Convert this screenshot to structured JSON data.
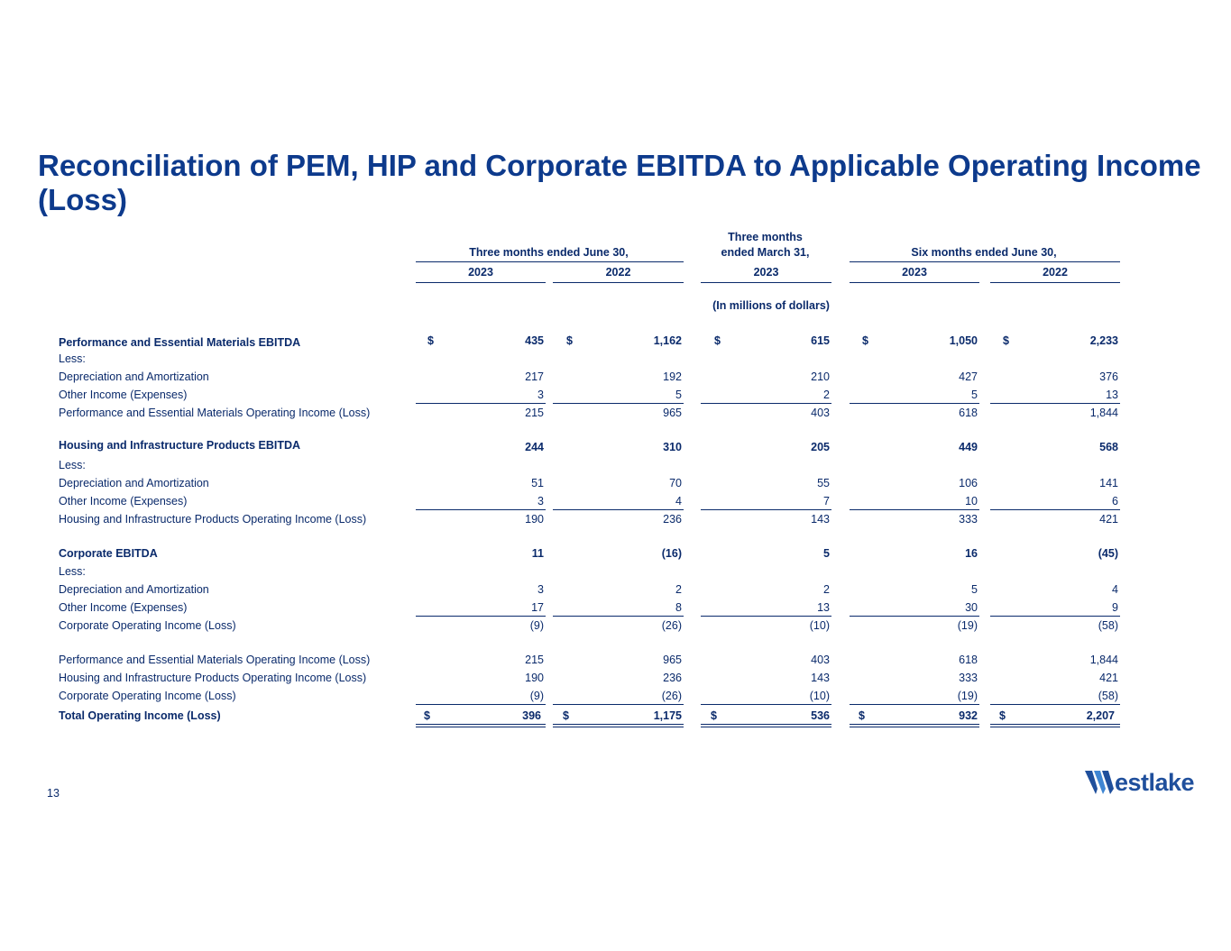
{
  "title": "Reconciliation of PEM, HIP and Corporate EBITDA to Applicable Operating Income (Loss)",
  "headers": {
    "group_1": "Three months ended June 30,",
    "group_2_line1": "Three months",
    "group_2_line2": "ended March 31,",
    "group_3": "Six months ended June 30,",
    "years": [
      "2023",
      "2022",
      "2023",
      "2023",
      "2022"
    ],
    "units": "(In millions of dollars)"
  },
  "dollar_sign": "$",
  "rows": [
    {
      "label": "Performance and Essential Materials EBITDA",
      "values": [
        "435",
        "1,162",
        "615",
        "1,050",
        "2,233"
      ]
    },
    {
      "label": "Less:"
    },
    {
      "label": "Depreciation and Amortization",
      "values": [
        "217",
        "192",
        "210",
        "427",
        "376"
      ]
    },
    {
      "label": "Other Income (Expenses)",
      "values": [
        "3",
        "5",
        "2",
        "5",
        "13"
      ]
    },
    {
      "label": "Performance and Essential Materials Operating Income (Loss)",
      "values": [
        "215",
        "965",
        "403",
        "618",
        "1,844"
      ]
    },
    {
      "label": "Housing and Infrastructure Products EBITDA",
      "values": [
        "244",
        "310",
        "205",
        "449",
        "568"
      ]
    },
    {
      "label": "Less:"
    },
    {
      "label": "Depreciation and Amortization",
      "values": [
        "51",
        "70",
        "55",
        "106",
        "141"
      ]
    },
    {
      "label": "Other Income (Expenses)",
      "values": [
        "3",
        "4",
        "7",
        "10",
        "6"
      ]
    },
    {
      "label": "Housing and Infrastructure Products Operating Income (Loss)",
      "values": [
        "190",
        "236",
        "143",
        "333",
        "421"
      ]
    },
    {
      "label": "Corporate EBITDA",
      "values": [
        "11",
        "(16)",
        "5",
        "16",
        "(45)"
      ]
    },
    {
      "label": "Less:"
    },
    {
      "label": "Depreciation and Amortization",
      "values": [
        "3",
        "2",
        "2",
        "5",
        "4"
      ]
    },
    {
      "label": "Other Income (Expenses)",
      "values": [
        "17",
        "8",
        "13",
        "30",
        "9"
      ]
    },
    {
      "label": "Corporate Operating Income (Loss)",
      "values": [
        "(9)",
        "(26)",
        "(10)",
        "(19)",
        "(58)"
      ]
    },
    {
      "label": "Performance and Essential Materials Operating Income (Loss)",
      "values": [
        "215",
        "965",
        "403",
        "618",
        "1,844"
      ]
    },
    {
      "label": "Housing and Infrastructure Products Operating Income (Loss)",
      "values": [
        "190",
        "236",
        "143",
        "333",
        "421"
      ]
    },
    {
      "label": "Corporate Operating Income (Loss)",
      "values": [
        "(9)",
        "(26)",
        "(10)",
        "(19)",
        "(58)"
      ]
    },
    {
      "label": "Total Operating Income (Loss)",
      "values": [
        "396",
        "1,175",
        "536",
        "932",
        "2,207"
      ]
    }
  ],
  "page_number": "13",
  "logo": {
    "text": "estlake",
    "brand_color": "#1f4f9c"
  },
  "colors": {
    "title": "#0d3a8c",
    "text": "#0a2a6b"
  }
}
